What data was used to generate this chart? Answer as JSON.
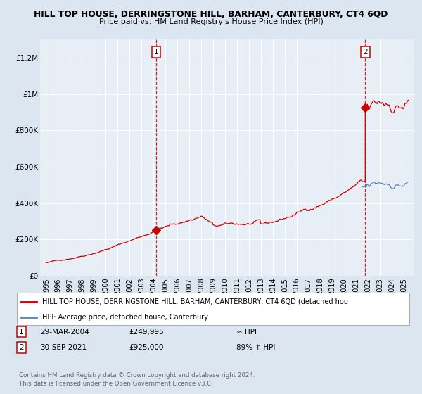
{
  "title_line1": "HILL TOP HOUSE, DERRINGSTONE HILL, BARHAM, CANTERBURY, CT4 6QD",
  "title_line2": "Price paid vs. HM Land Registry's House Price Index (HPI)",
  "background_color": "#dce6f0",
  "plot_bg_color": "#e8eef5",
  "hpi_color": "#5588bb",
  "price_color": "#cc0000",
  "ylabel_ticks": [
    "£0",
    "£200K",
    "£400K",
    "£600K",
    "£800K",
    "£1M",
    "£1.2M"
  ],
  "ytick_values": [
    0,
    200000,
    400000,
    600000,
    800000,
    1000000,
    1200000
  ],
  "ylim": [
    0,
    1300000
  ],
  "xlim_start": 1994.5,
  "xlim_end": 2025.8,
  "xtick_years": [
    1995,
    1996,
    1997,
    1998,
    1999,
    2000,
    2001,
    2002,
    2003,
    2004,
    2005,
    2006,
    2007,
    2008,
    2009,
    2010,
    2011,
    2012,
    2013,
    2014,
    2015,
    2016,
    2017,
    2018,
    2019,
    2020,
    2021,
    2022,
    2023,
    2024,
    2025
  ],
  "sale1_x": 2004.23,
  "sale1_y": 249995,
  "sale2_x": 2021.75,
  "sale2_y": 925000,
  "legend_line1": "HILL TOP HOUSE, DERRINGSTONE HILL, BARHAM, CANTERBURY, CT4 6QD (detached hou",
  "legend_line2": "HPI: Average price, detached house, Canterbury",
  "footer": "Contains HM Land Registry data © Crown copyright and database right 2024.\nThis data is licensed under the Open Government Licence v3.0."
}
